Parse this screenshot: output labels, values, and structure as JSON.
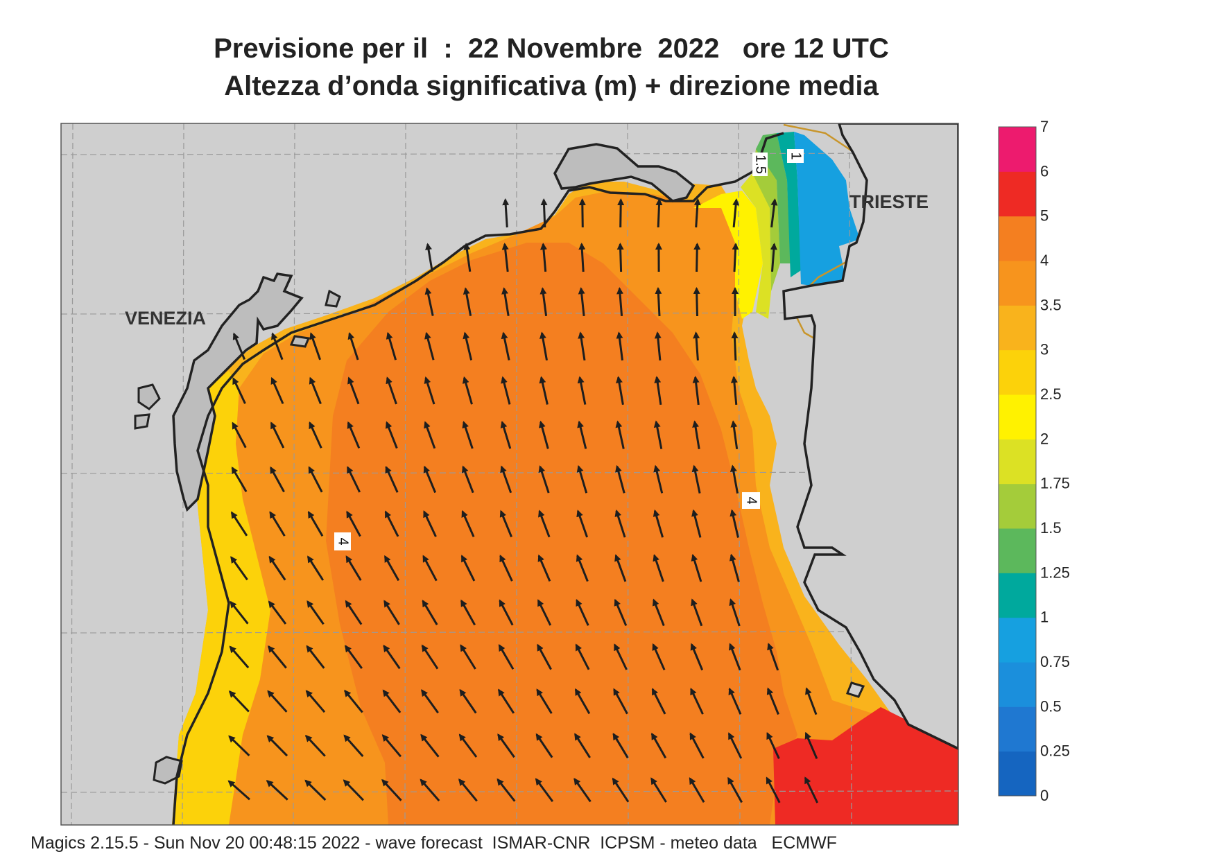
{
  "title": {
    "line1": "Previsione per il  :  22 Novembre  2022   ore 12 UTC",
    "line2": "Altezza d’onda significativa (m) + direzione media"
  },
  "places": {
    "venezia": "VENEZIA",
    "trieste": "TRIESTE"
  },
  "colorbar": {
    "levels": [
      "0",
      "0.25",
      "0.5",
      "0.75",
      "1",
      "1.25",
      "1.5",
      "1.75",
      "2",
      "2.5",
      "3",
      "3.5",
      "4",
      "5",
      "6",
      "7"
    ],
    "colors": [
      "#1565c0",
      "#1f78d1",
      "#1b8fdc",
      "#16a0e0",
      "#00a99d",
      "#5cb85c",
      "#a4cc3a",
      "#dce124",
      "#fff200",
      "#fcd20a",
      "#f9b31c",
      "#f7941d",
      "#f47f20",
      "#ee2a24",
      "#ed1b6e"
    ]
  },
  "map_colors": {
    "land": "#cfcfcf",
    "coast": "#222222",
    "border": "#c8952a",
    "grid": "#9a9a9a",
    "arrow": "#1e1e1e"
  },
  "contour_labels": {
    "left": "4",
    "right": "4",
    "top_a": "1.5",
    "top_b": "1"
  },
  "footer": "Magics 2.15.5 - Sun Nov 20 00:48:15 2022 - wave forecast  ISMAR-CNR  ICPSM - meteo data   ECMWF"
}
